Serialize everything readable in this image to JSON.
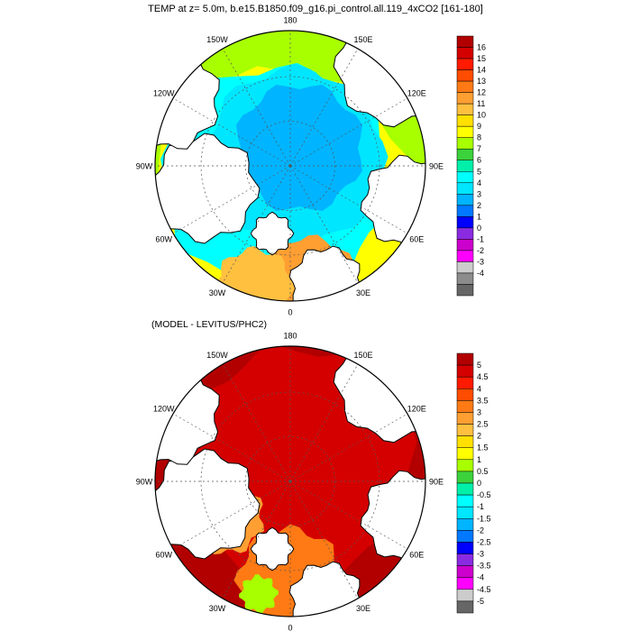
{
  "title": "TEMP at z=   5.0m, b.e15.B1850.f09_g16.pi_control.all.119_4xCO2 [161-180]",
  "subtitle": "(MODEL - LEVITUS/PHC2)",
  "longitude_labels": [
    "180",
    "150E",
    "120E",
    "90E",
    "60E",
    "30E",
    "0",
    "30W",
    "60W",
    "90W",
    "120W",
    "150W"
  ],
  "colors": {
    "land": "#ffffff",
    "coast": "#000000",
    "grid": "#555555"
  },
  "map1": {
    "name": "model-temperature",
    "colorbar": {
      "labels": [
        "16",
        "15",
        "14",
        "13",
        "12",
        "11",
        "10",
        "9",
        "8",
        "7",
        "6",
        "5",
        "4",
        "3",
        "2",
        "1",
        "0",
        "-1",
        "-2",
        "-3",
        "-4"
      ],
      "colors": [
        "#b20000",
        "#d40000",
        "#ff1a00",
        "#ff4c00",
        "#ff7a14",
        "#ff9f32",
        "#ffc040",
        "#ffe000",
        "#ffff00",
        "#a8ff00",
        "#3cd23c",
        "#00f0aa",
        "#00ffff",
        "#00e6ff",
        "#00b4ff",
        "#0078ff",
        "#0000ff",
        "#8a2be2",
        "#cc00cc",
        "#ff00ff",
        "#cccccc",
        "#8c8c8c",
        "#666666"
      ]
    }
  },
  "map2": {
    "name": "model-minus-levitus-difference",
    "colorbar": {
      "labels": [
        "5",
        "4.5",
        "4",
        "3.5",
        "3",
        "2.5",
        "2",
        "1.5",
        "1",
        "0.5",
        "0",
        "-0.5",
        "-1",
        "-1.5",
        "-2",
        "-2.5",
        "-3",
        "-3.5",
        "-4",
        "-4.5",
        "-5"
      ],
      "colors": [
        "#b20000",
        "#d40000",
        "#ff1a00",
        "#ff4c00",
        "#ff7a14",
        "#ff9f32",
        "#ffc040",
        "#ffe000",
        "#ffff00",
        "#a8ff00",
        "#3cd23c",
        "#00f0aa",
        "#00ffff",
        "#00e6ff",
        "#00b4ff",
        "#0078ff",
        "#0000ff",
        "#8a2be2",
        "#cc00cc",
        "#ff00ff",
        "#cccccc",
        "#666666"
      ]
    }
  }
}
